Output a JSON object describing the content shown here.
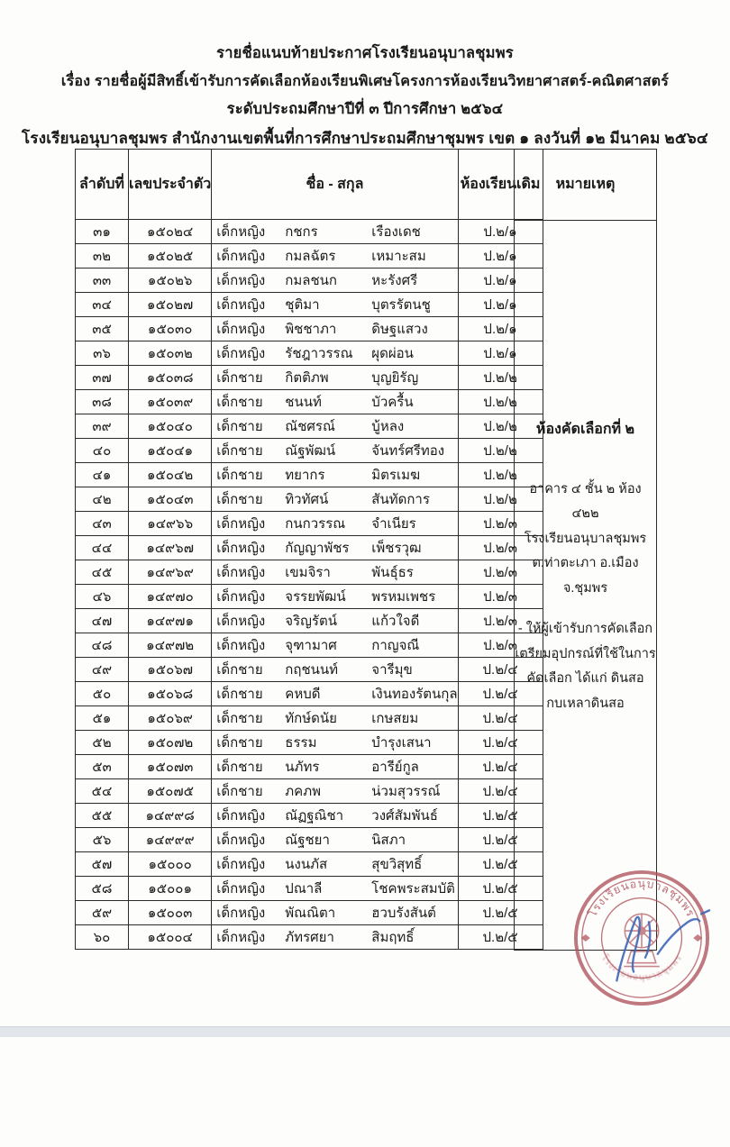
{
  "colors": {
    "ink": "#1a1a1a",
    "table_border": "#2b2b2b",
    "stamp_red": "#b0545c",
    "signature_blue": "#4068b8",
    "scan_edge": "#e2e5e9"
  },
  "header": {
    "title_lines": [
      "รายชื่อแนบท้ายประกาศโรงเรียนอนุบาลชุมพร",
      "เรื่อง รายชื่อผู้มีสิทธิ์เข้ารับการคัดเลือกห้องเรียนพิเศษโครงการห้องเรียนวิทยาศาสตร์-คณิตศาสตร์",
      "ระดับประถมศึกษาปีที่ ๓ ปีการศึกษา ๒๕๖๔",
      "โรงเรียนอนุบาลชุมพร สำนักงานเขตพื้นที่การศึกษาประถมศึกษาชุมพร เขต ๑ ลงวันที่ ๑๒ มีนาคม ๒๕๖๔"
    ]
  },
  "table": {
    "headers": {
      "no": "ลำดับที่",
      "id": "เลขประจำตัว",
      "name": "ชื่อ - สกุล",
      "room": "ห้องเรียนเดิม",
      "remark": "หมายเหตุ"
    },
    "rows": [
      {
        "no": "๓๑",
        "id": "๑๕๐๒๔",
        "title": "เด็กหญิง",
        "first": "กชกร",
        "last": "เรืองเดช",
        "room": "ป.๒/๑"
      },
      {
        "no": "๓๒",
        "id": "๑๕๐๒๕",
        "title": "เด็กหญิง",
        "first": "กมลฉัตร",
        "last": "เหมาะสม",
        "room": "ป.๒/๑"
      },
      {
        "no": "๓๓",
        "id": "๑๕๐๒๖",
        "title": "เด็กหญิง",
        "first": "กมลชนก",
        "last": "หะรังศรี",
        "room": "ป.๒/๑"
      },
      {
        "no": "๓๔",
        "id": "๑๕๐๒๗",
        "title": "เด็กหญิง",
        "first": "ชุติมา",
        "last": "บุตรรัตนชู",
        "room": "ป.๒/๑"
      },
      {
        "no": "๓๕",
        "id": "๑๕๐๓๐",
        "title": "เด็กหญิง",
        "first": "พิชชาภา",
        "last": "ดิษฐแสวง",
        "room": "ป.๒/๑"
      },
      {
        "no": "๓๖",
        "id": "๑๕๐๓๒",
        "title": "เด็กหญิง",
        "first": "รัชฎาวรรณ",
        "last": "ผุดผ่อน",
        "room": "ป.๒/๑"
      },
      {
        "no": "๓๗",
        "id": "๑๕๐๓๘",
        "title": "เด็กชาย",
        "first": "กิตติภพ",
        "last": "บุญยิรัญ",
        "room": "ป.๒/๒"
      },
      {
        "no": "๓๘",
        "id": "๑๕๐๓๙",
        "title": "เด็กชาย",
        "first": "ชนนท์",
        "last": "บัวครื้น",
        "room": "ป.๒/๒"
      },
      {
        "no": "๓๙",
        "id": "๑๕๐๔๐",
        "title": "เด็กชาย",
        "first": "ณัชศรณ์",
        "last": "บู้หลง",
        "room": "ป.๒/๒"
      },
      {
        "no": "๔๐",
        "id": "๑๕๐๔๑",
        "title": "เด็กชาย",
        "first": "ณัฐพัฒน์",
        "last": "จันทร์ศรีทอง",
        "room": "ป.๒/๒"
      },
      {
        "no": "๔๑",
        "id": "๑๕๐๔๒",
        "title": "เด็กชาย",
        "first": "ทยากร",
        "last": "มิตรเมฆ",
        "room": "ป.๒/๒"
      },
      {
        "no": "๔๒",
        "id": "๑๕๐๔๓",
        "title": "เด็กชาย",
        "first": "ทิวทัศน์",
        "last": "สันทัดการ",
        "room": "ป.๒/๒"
      },
      {
        "no": "๔๓",
        "id": "๑๔๙๖๖",
        "title": "เด็กหญิง",
        "first": "กนกวรรณ",
        "last": "จำเนียร",
        "room": "ป.๒/๓"
      },
      {
        "no": "๔๔",
        "id": "๑๔๙๖๗",
        "title": "เด็กหญิง",
        "first": "กัญญาพัชร",
        "last": "เพ็ชรวุฒ",
        "room": "ป.๒/๓"
      },
      {
        "no": "๔๕",
        "id": "๑๔๙๖๙",
        "title": "เด็กหญิง",
        "first": "เขมจิรา",
        "last": "พันธุ์ธร",
        "room": "ป.๒/๓"
      },
      {
        "no": "๔๖",
        "id": "๑๔๙๗๐",
        "title": "เด็กหญิง",
        "first": "จรรยพัฒน์",
        "last": "พรหมเพชร",
        "room": "ป.๒/๓"
      },
      {
        "no": "๔๗",
        "id": "๑๔๙๗๑",
        "title": "เด็กหญิง",
        "first": "จริญรัตน์",
        "last": "แก้วใจดี",
        "room": "ป.๒/๓"
      },
      {
        "no": "๔๘",
        "id": "๑๔๙๗๒",
        "title": "เด็กหญิง",
        "first": "จุฑามาศ",
        "last": "กาญจณี",
        "room": "ป.๒/๓"
      },
      {
        "no": "๔๙",
        "id": "๑๕๐๖๗",
        "title": "เด็กชาย",
        "first": "กฤชนนท์",
        "last": "จารีมุข",
        "room": "ป.๒/๔"
      },
      {
        "no": "๕๐",
        "id": "๑๕๐๖๘",
        "title": "เด็กชาย",
        "first": "คหบดี",
        "last": "เงินทองรัตนกุล",
        "room": "ป.๒/๔"
      },
      {
        "no": "๕๑",
        "id": "๑๕๐๖๙",
        "title": "เด็กชาย",
        "first": "ทักษ์ดนัย",
        "last": "เกษสยม",
        "room": "ป.๒/๔"
      },
      {
        "no": "๕๒",
        "id": "๑๕๐๗๒",
        "title": "เด็กชาย",
        "first": "ธรรม",
        "last": "บำรุงเสนา",
        "room": "ป.๒/๔"
      },
      {
        "no": "๕๓",
        "id": "๑๕๐๗๓",
        "title": "เด็กชาย",
        "first": "นภัทร",
        "last": "อารีย์กูล",
        "room": "ป.๒/๔"
      },
      {
        "no": "๕๔",
        "id": "๑๕๐๗๕",
        "title": "เด็กชาย",
        "first": "ภคภพ",
        "last": "น่วมสุวรรณ์",
        "room": "ป.๒/๔"
      },
      {
        "no": "๕๕",
        "id": "๑๔๙๙๘",
        "title": "เด็กหญิง",
        "first": "ณัฏฐณิชา",
        "last": "วงศ์สัมพันธ์",
        "room": "ป.๒/๕"
      },
      {
        "no": "๕๖",
        "id": "๑๔๙๙๙",
        "title": "เด็กหญิง",
        "first": "ณัฐชยา",
        "last": "นิสภา",
        "room": "ป.๒/๕"
      },
      {
        "no": "๕๗",
        "id": "๑๕๐๐๐",
        "title": "เด็กหญิง",
        "first": "นงนภัส",
        "last": "สุขวิสุทธิ์",
        "room": "ป.๒/๕"
      },
      {
        "no": "๕๘",
        "id": "๑๕๐๐๑",
        "title": "เด็กหญิง",
        "first": "ปณาลี",
        "last": "โชคพระสมบัติ",
        "room": "ป.๒/๕"
      },
      {
        "no": "๕๙",
        "id": "๑๕๐๐๓",
        "title": "เด็กหญิง",
        "first": "พัณณิตา",
        "last": "ฮวบรังสันต์",
        "room": "ป.๒/๕"
      },
      {
        "no": "๖๐",
        "id": "๑๕๐๐๔",
        "title": "เด็กหญิง",
        "first": "ภัทรศยา",
        "last": "สิมฤทธิ์",
        "room": "ป.๒/๕"
      }
    ],
    "remark": {
      "heading": "ห้องคัดเลือกที่ ๒",
      "address_lines": [
        "อาคาร ๔ ชั้น ๒ ห้อง ๔๒๒",
        "โรงเรียนอนุบาลชุมพร",
        "ต.ท่าตะเภา อ.เมือง",
        "จ.ชุมพร"
      ],
      "note_lines": [
        "- ให้ผู้เข้ารับการคัดเลือก",
        "เตรียมอุปกรณ์ที่ใช้ในการ",
        "คัดเลือก ได้แก่  ดินสอ",
        "กบเหลาดินสอ"
      ]
    }
  },
  "stamp": {
    "school_text": "โรงเรียนอนุบาลชุมพร",
    "emblem": "dharma-wheel"
  }
}
